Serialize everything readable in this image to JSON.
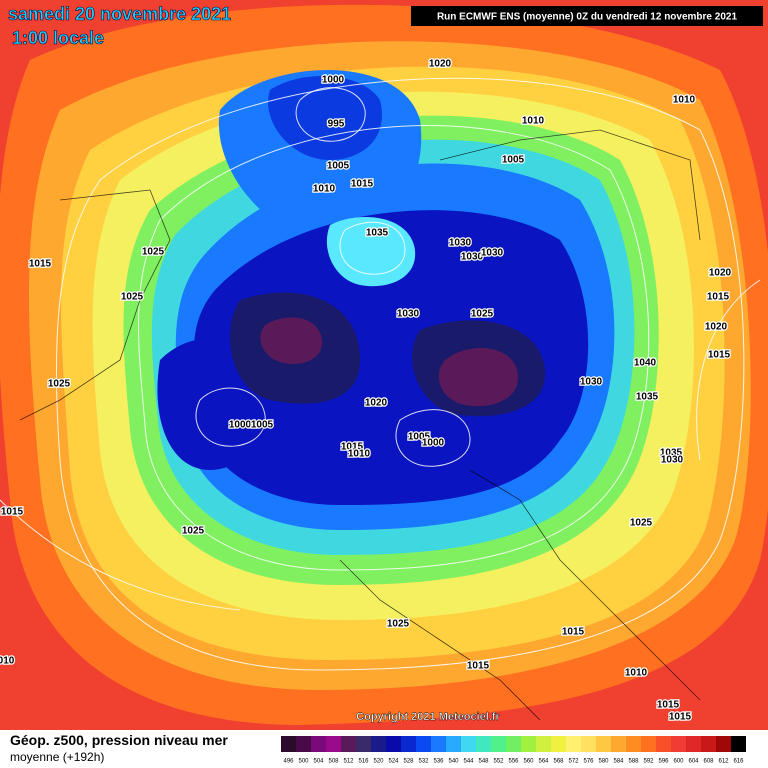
{
  "header": {
    "date": "samedi 20 novembre 2021",
    "local_time": "1:00 locale",
    "run_info": "Run ECMWF ENS (moyenne) 0Z du vendredi 12 novembre 2021"
  },
  "footer": {
    "copyright": "Copyright 2021 Meteociel.fr"
  },
  "legend": {
    "title": "Géop. z500, pression niveau mer",
    "subtitle": "moyenne  (+192h)",
    "values": [
      496,
      500,
      504,
      508,
      512,
      516,
      520,
      524,
      528,
      532,
      536,
      540,
      544,
      548,
      552,
      556,
      560,
      564,
      568,
      572,
      576,
      580,
      584,
      588,
      592,
      596,
      600,
      604,
      608,
      612,
      616
    ],
    "colors": [
      "#2b0a2b",
      "#4a0a4a",
      "#7a0a7a",
      "#9a0a8a",
      "#5a1a5a",
      "#3a2a6a",
      "#1a1a8a",
      "#0a0aaa",
      "#0a28d0",
      "#0a4af0",
      "#1a7aff",
      "#28aaff",
      "#40d8f0",
      "#40e8c0",
      "#50f08a",
      "#70f060",
      "#a0f040",
      "#d0f040",
      "#f0f040",
      "#fff070",
      "#ffe060",
      "#ffc840",
      "#ffa830",
      "#ff8c20",
      "#ff7020",
      "#f85028",
      "#f03c32",
      "#e02828",
      "#c81818",
      "#a00808",
      "#000000"
    ]
  },
  "isobar_labels": [
    "1020",
    "1000",
    "995",
    "1010",
    "1010",
    "1005",
    "1005",
    "1015",
    "1010",
    "1025",
    "1015",
    "1035",
    "1030",
    "1030",
    "1030",
    "1020",
    "1025",
    "1015",
    "1030",
    "1025",
    "1020",
    "1015",
    "1040",
    "1025",
    "1030",
    "1035",
    "1020",
    "1000",
    "1005",
    "1005",
    "1000",
    "1015",
    "1010",
    "1035",
    "1030",
    "1015",
    "1025",
    "1025",
    "1025",
    "1015",
    "010",
    "1015",
    "1010",
    "1015",
    "1015"
  ]
}
